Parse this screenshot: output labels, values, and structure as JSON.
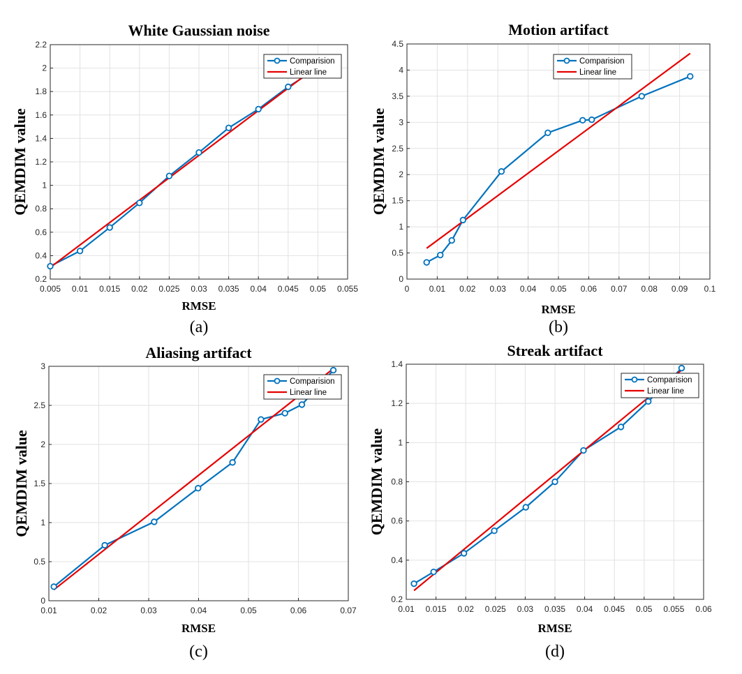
{
  "colors": {
    "comparison": "#0072BD",
    "linear": "#E60000"
  },
  "legend": {
    "comparison": "Comparision",
    "linear": "Linear line"
  },
  "chart_data": [
    {
      "type": "line",
      "title": "White Gaussian noise",
      "xlabel": "RMSE",
      "ylabel": "QEMDIM value",
      "caption": "(a)",
      "xlim": [
        0.005,
        0.055
      ],
      "ylim": [
        0.2,
        2.2
      ],
      "xticks": [
        0.005,
        0.01,
        0.015,
        0.02,
        0.025,
        0.03,
        0.035,
        0.04,
        0.045,
        0.05,
        0.055
      ],
      "xtick_labels": [
        "0.005",
        "0.01",
        "0.015",
        "0.02",
        "0.025",
        "0.03",
        "0.035",
        "0.04",
        "0.045",
        "0.05",
        "0.055"
      ],
      "yticks": [
        0.2,
        0.4,
        0.6,
        0.8,
        1.0,
        1.2,
        1.4,
        1.6,
        1.8,
        2.0,
        2.2
      ],
      "ytick_labels": [
        "0.2",
        "0.4",
        "0.6",
        "0.8",
        "1",
        "1.2",
        "1.4",
        "1.6",
        "1.8",
        "2",
        "2.2"
      ],
      "grid": true,
      "legend_position": "top-right",
      "series": [
        {
          "name": "Comparision",
          "style": "line-circle",
          "x": [
            0.005,
            0.01,
            0.015,
            0.02,
            0.025,
            0.03,
            0.035,
            0.04,
            0.045,
            0.05
          ],
          "y": [
            0.31,
            0.44,
            0.64,
            0.85,
            1.08,
            1.28,
            1.49,
            1.65,
            1.84,
            2.0
          ]
        },
        {
          "name": "Linear line",
          "style": "line",
          "x": [
            0.005,
            0.05
          ],
          "y": [
            0.3,
            2.02
          ]
        }
      ]
    },
    {
      "type": "line",
      "title": "Motion artifact",
      "xlabel": "RMSE",
      "ylabel": "QEMDIM value",
      "caption": "(b)",
      "xlim": [
        0,
        0.1
      ],
      "ylim": [
        0,
        4.5
      ],
      "xticks": [
        0,
        0.01,
        0.02,
        0.03,
        0.04,
        0.05,
        0.06,
        0.07,
        0.08,
        0.09,
        0.1
      ],
      "xtick_labels": [
        "0",
        "0.01",
        "0.02",
        "0.03",
        "0.04",
        "0.05",
        "0.06",
        "0.07",
        "0.08",
        "0.09",
        "0.1"
      ],
      "yticks": [
        0,
        0.5,
        1,
        1.5,
        2,
        2.5,
        3,
        3.5,
        4,
        4.5
      ],
      "ytick_labels": [
        "0",
        "0.5",
        "1",
        "1.5",
        "2",
        "2.5",
        "3",
        "3.5",
        "4",
        "4.5"
      ],
      "grid": true,
      "legend_position": "top-right",
      "series": [
        {
          "name": "Comparision",
          "style": "line-circle",
          "x": [
            0.0065,
            0.011,
            0.0148,
            0.0185,
            0.0312,
            0.0465,
            0.058,
            0.061,
            0.0775,
            0.0935
          ],
          "y": [
            0.32,
            0.46,
            0.74,
            1.13,
            2.06,
            2.8,
            3.04,
            3.05,
            3.5,
            3.88
          ]
        },
        {
          "name": "Linear line",
          "style": "line",
          "x": [
            0.0065,
            0.0935
          ],
          "y": [
            0.59,
            4.32
          ]
        }
      ]
    },
    {
      "type": "line",
      "title": "Aliasing artifact",
      "xlabel": "RMSE",
      "ylabel": "QEMDIM value",
      "caption": "(c)",
      "xlim": [
        0.01,
        0.07
      ],
      "ylim": [
        0,
        3
      ],
      "xticks": [
        0.01,
        0.02,
        0.03,
        0.04,
        0.05,
        0.06,
        0.07
      ],
      "xtick_labels": [
        "0.01",
        "0.02",
        "0.03",
        "0.04",
        "0.05",
        "0.06",
        "0.07"
      ],
      "yticks": [
        0,
        0.5,
        1,
        1.5,
        2,
        2.5,
        3
      ],
      "ytick_labels": [
        "0",
        "0.5",
        "1",
        "1.5",
        "2",
        "2.5",
        "3"
      ],
      "grid": true,
      "legend_position": "top-right",
      "series": [
        {
          "name": "Comparision",
          "style": "line-circle",
          "x": [
            0.011,
            0.0212,
            0.0311,
            0.0399,
            0.0468,
            0.0525,
            0.0573,
            0.0607,
            0.067
          ],
          "y": [
            0.18,
            0.71,
            1.01,
            1.44,
            1.77,
            2.32,
            2.4,
            2.51,
            2.95
          ]
        },
        {
          "name": "Linear line",
          "style": "line",
          "x": [
            0.011,
            0.067
          ],
          "y": [
            0.14,
            2.97
          ]
        }
      ]
    },
    {
      "type": "line",
      "title": "Streak artifact",
      "xlabel": "RMSE",
      "ylabel": "QEMDIM value",
      "caption": "(d)",
      "xlim": [
        0.01,
        0.06
      ],
      "ylim": [
        0.2,
        1.4
      ],
      "xticks": [
        0.01,
        0.015,
        0.02,
        0.025,
        0.03,
        0.035,
        0.04,
        0.045,
        0.05,
        0.055,
        0.06
      ],
      "xtick_labels": [
        "0.01",
        "0.015",
        "0.02",
        "0.025",
        "0.03",
        "0.035",
        "0.04",
        "0.045",
        "0.05",
        "0.055",
        "0.06"
      ],
      "yticks": [
        0.2,
        0.4,
        0.6,
        0.8,
        1.0,
        1.2,
        1.4
      ],
      "ytick_labels": [
        "0.2",
        "0.4",
        "0.6",
        "0.8",
        "1",
        "1.2",
        "1.4"
      ],
      "grid": true,
      "legend_position": "top-right",
      "series": [
        {
          "name": "Comparision",
          "style": "line-circle",
          "x": [
            0.0113,
            0.0146,
            0.0197,
            0.0248,
            0.0301,
            0.035,
            0.0398,
            0.0461,
            0.0507,
            0.0563
          ],
          "y": [
            0.28,
            0.34,
            0.435,
            0.55,
            0.67,
            0.8,
            0.96,
            1.08,
            1.21,
            1.38
          ]
        },
        {
          "name": "Linear line",
          "style": "line",
          "x": [
            0.0113,
            0.0563
          ],
          "y": [
            0.245,
            1.37
          ]
        }
      ]
    }
  ]
}
